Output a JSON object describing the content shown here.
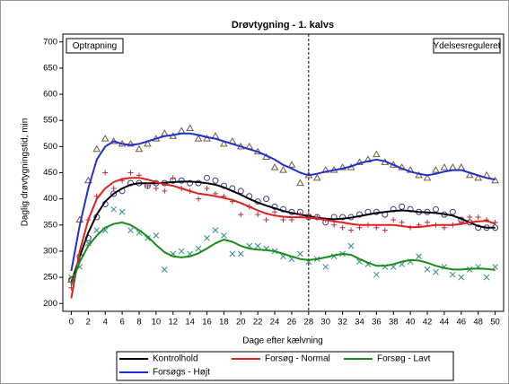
{
  "chart_data": {
    "type": "line",
    "title": "Drøvtygning - 1. kalvs",
    "x_label": "Dage efter kælvning",
    "y_label": "Daglig drøvtygningstid, min",
    "annotations": {
      "left": "Optrapning",
      "right": "Ydelsesreguleret"
    },
    "reference_x": 28,
    "xlim": [
      -1,
      51
    ],
    "ylim": [
      185,
      715
    ],
    "xticks": [
      0,
      2,
      4,
      6,
      8,
      10,
      12,
      14,
      16,
      18,
      20,
      22,
      24,
      26,
      28,
      30,
      32,
      34,
      36,
      38,
      40,
      42,
      44,
      46,
      48,
      50
    ],
    "yticks": [
      200,
      250,
      300,
      350,
      400,
      450,
      500,
      550,
      600,
      650,
      700
    ],
    "x": [
      0,
      1,
      2,
      3,
      4,
      5,
      6,
      7,
      8,
      9,
      10,
      11,
      12,
      13,
      14,
      15,
      16,
      17,
      18,
      19,
      20,
      21,
      22,
      23,
      24,
      25,
      26,
      27,
      28,
      29,
      30,
      31,
      32,
      33,
      34,
      35,
      36,
      37,
      38,
      39,
      40,
      41,
      42,
      43,
      44,
      45,
      46,
      47,
      48,
      49,
      50
    ],
    "series": [
      {
        "name": "Kontrolhold",
        "color": "#000000",
        "marker": "circle",
        "marker_color": "#3b3b8f",
        "values": [
          245,
          290,
          325,
          365,
          390,
          410,
          415,
          430,
          430,
          425,
          430,
          430,
          435,
          435,
          430,
          430,
          440,
          435,
          425,
          420,
          415,
          405,
          395,
          400,
          385,
          380,
          375,
          375,
          365,
          365,
          355,
          365,
          365,
          365,
          370,
          375,
          375,
          370,
          380,
          385,
          380,
          375,
          375,
          380,
          370,
          375,
          360,
          355,
          345,
          345,
          345
        ],
        "smooth": [
          240,
          290,
          335,
          370,
          395,
          410,
          420,
          427,
          430,
          430,
          430,
          431,
          432,
          433,
          433,
          432,
          430,
          427,
          422,
          415,
          408,
          400,
          393,
          387,
          382,
          377,
          373,
          370,
          367,
          364,
          362,
          361,
          362,
          364,
          367,
          370,
          373,
          375,
          377,
          378,
          377,
          375,
          374,
          373,
          371,
          368,
          362,
          355,
          348,
          345,
          345
        ]
      },
      {
        "name": "Forsøg - Normal",
        "color": "#e0201c",
        "marker": "plus",
        "marker_color": "#b0304a",
        "values": [
          230,
          285,
          360,
          405,
          450,
          420,
          435,
          450,
          445,
          425,
          420,
          415,
          440,
          420,
          415,
          400,
          420,
          410,
          405,
          395,
          370,
          385,
          370,
          360,
          375,
          360,
          360,
          370,
          370,
          365,
          360,
          350,
          345,
          340,
          345,
          350,
          345,
          340,
          360,
          355,
          345,
          350,
          355,
          350,
          345,
          350,
          355,
          365,
          365,
          360,
          355
        ],
        "smooth": [
          210,
          300,
          360,
          400,
          420,
          432,
          438,
          440,
          440,
          437,
          432,
          428,
          425,
          420,
          415,
          410,
          408,
          405,
          402,
          398,
          392,
          385,
          378,
          372,
          368,
          366,
          365,
          365,
          364,
          362,
          360,
          357,
          355,
          352,
          350,
          350,
          350,
          350,
          350,
          348,
          346,
          346,
          348,
          350,
          350,
          350,
          352,
          355,
          357,
          358,
          352
        ]
      },
      {
        "name": "Forsøg - Lavt",
        "color": "#1a8c1a",
        "marker": "x",
        "marker_color": "#2e8b8b",
        "values": [
          250,
          270,
          315,
          340,
          340,
          380,
          375,
          340,
          335,
          325,
          330,
          265,
          295,
          300,
          295,
          305,
          325,
          340,
          330,
          295,
          295,
          310,
          310,
          305,
          300,
          290,
          285,
          295,
          280,
          285,
          270,
          290,
          295,
          310,
          280,
          275,
          255,
          270,
          270,
          275,
          280,
          290,
          265,
          260,
          270,
          255,
          250,
          265,
          270,
          250,
          270
        ],
        "smooth": [
          235,
          280,
          310,
          330,
          345,
          352,
          355,
          350,
          340,
          328,
          312,
          298,
          290,
          288,
          290,
          296,
          305,
          315,
          322,
          318,
          310,
          305,
          303,
          302,
          300,
          295,
          290,
          285,
          283,
          285,
          288,
          292,
          295,
          293,
          285,
          278,
          272,
          272,
          275,
          280,
          283,
          282,
          278,
          272,
          268,
          265,
          265,
          266,
          267,
          266,
          264
        ]
      },
      {
        "name": "Forsøgs - Højt",
        "color": "#1f2fd0",
        "marker": "triangle",
        "marker_color": "#7a5a3a",
        "values": [
          245,
          360,
          435,
          495,
          515,
          510,
          505,
          505,
          495,
          505,
          515,
          525,
          520,
          530,
          535,
          515,
          515,
          520,
          505,
          510,
          500,
          500,
          490,
          480,
          460,
          455,
          465,
          430,
          445,
          440,
          455,
          455,
          460,
          460,
          470,
          475,
          485,
          470,
          465,
          460,
          455,
          445,
          440,
          455,
          460,
          460,
          460,
          445,
          440,
          445,
          435
        ],
        "smooth": [
          262,
          350,
          420,
          475,
          500,
          510,
          505,
          503,
          505,
          510,
          515,
          520,
          522,
          525,
          525,
          522,
          518,
          515,
          510,
          505,
          500,
          495,
          490,
          483,
          475,
          465,
          458,
          450,
          445,
          448,
          452,
          455,
          458,
          462,
          468,
          472,
          475,
          472,
          465,
          458,
          452,
          448,
          445,
          448,
          452,
          455,
          455,
          450,
          445,
          440,
          437
        ]
      }
    ]
  }
}
